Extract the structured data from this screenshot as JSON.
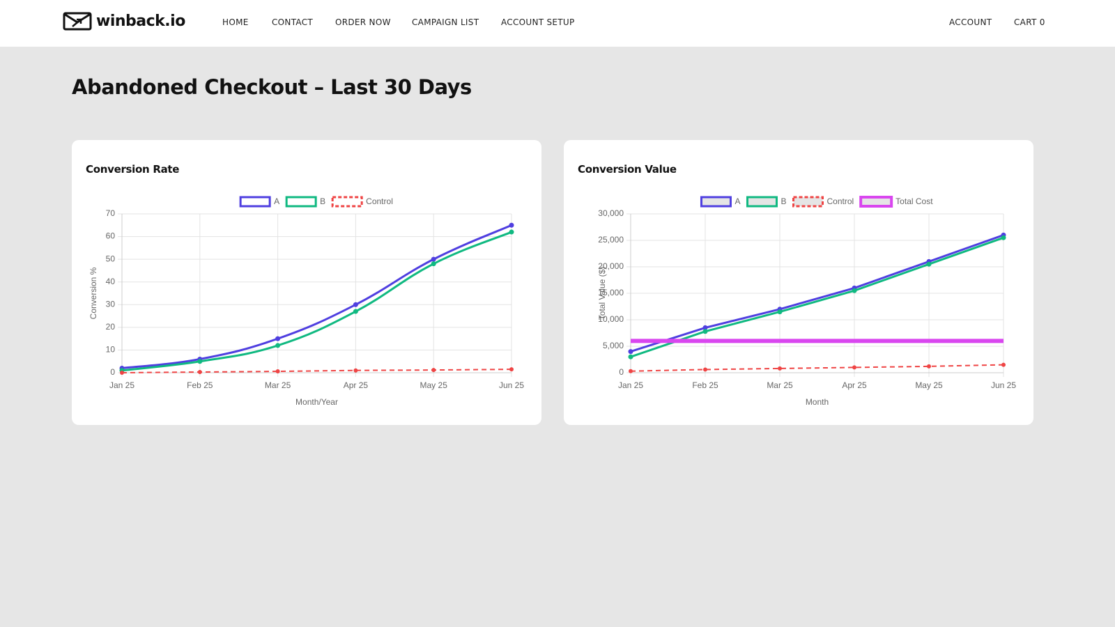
{
  "header": {
    "logo": "winback.io",
    "nav": [
      "HOME",
      "CONTACT",
      "ORDER NOW",
      "CAMPAIGN LIST",
      "ACCOUNT SETUP"
    ],
    "account_nav": [
      "ACCOUNT",
      "CART 0"
    ]
  },
  "page_title": "Abandoned Checkout – Last 30 Days",
  "chart_data": [
    {
      "type": "line",
      "title": "Conversion Rate",
      "x_label": "Month/Year",
      "y_label": "Conversion %",
      "categories": [
        "Jan 25",
        "Feb 25",
        "Mar 25",
        "Apr 25",
        "May 25",
        "Jun 25"
      ],
      "smooth": true,
      "grid": true,
      "legend_box_fill": "#ffffff",
      "series": [
        {
          "name": "A",
          "color": "#4f3fe0",
          "values": [
            2,
            6,
            15,
            30,
            50,
            65
          ]
        },
        {
          "name": "B",
          "color": "#10b981",
          "values": [
            1,
            5,
            12,
            27,
            48,
            62
          ]
        },
        {
          "name": "Control",
          "color": "#ef4444",
          "dashed": true,
          "values": [
            0,
            0.3,
            0.6,
            1,
            1.2,
            1.5
          ]
        }
      ],
      "ylim": [
        0,
        70
      ],
      "yticks": [
        0,
        10,
        20,
        30,
        40,
        50,
        60,
        70
      ]
    },
    {
      "type": "line",
      "title": "Conversion Value",
      "x_label": "Month",
      "y_label": "Total Value ($)",
      "categories": [
        "Jan 25",
        "Feb 25",
        "Mar 25",
        "Apr 25",
        "May 25",
        "Jun 25"
      ],
      "smooth": false,
      "grid": true,
      "legend_box_fill": "#e5e5e5",
      "series": [
        {
          "name": "A",
          "color": "#4f3fe0",
          "values": [
            4000,
            8500,
            12000,
            16000,
            21000,
            26000
          ]
        },
        {
          "name": "B",
          "color": "#10b981",
          "values": [
            3000,
            7800,
            11500,
            15500,
            20500,
            25500
          ]
        },
        {
          "name": "Control",
          "color": "#ef4444",
          "dashed": true,
          "values": [
            300,
            600,
            800,
            1000,
            1200,
            1500
          ]
        },
        {
          "name": "Total Cost",
          "color": "#d946ef",
          "thick": true,
          "points": false,
          "values": [
            6000,
            6000,
            6000,
            6000,
            6000,
            6000
          ]
        }
      ],
      "ylim": [
        0,
        30000
      ],
      "yticks": [
        0,
        {
          "value": 5000,
          "label": "5,000"
        },
        {
          "value": 10000,
          "label": "10,000"
        },
        {
          "value": 15000,
          "label": "15,000"
        },
        {
          "value": 20000,
          "label": "20,000"
        },
        {
          "value": 25000,
          "label": "25,000"
        },
        {
          "value": 30000,
          "label": "30,000"
        }
      ]
    }
  ]
}
